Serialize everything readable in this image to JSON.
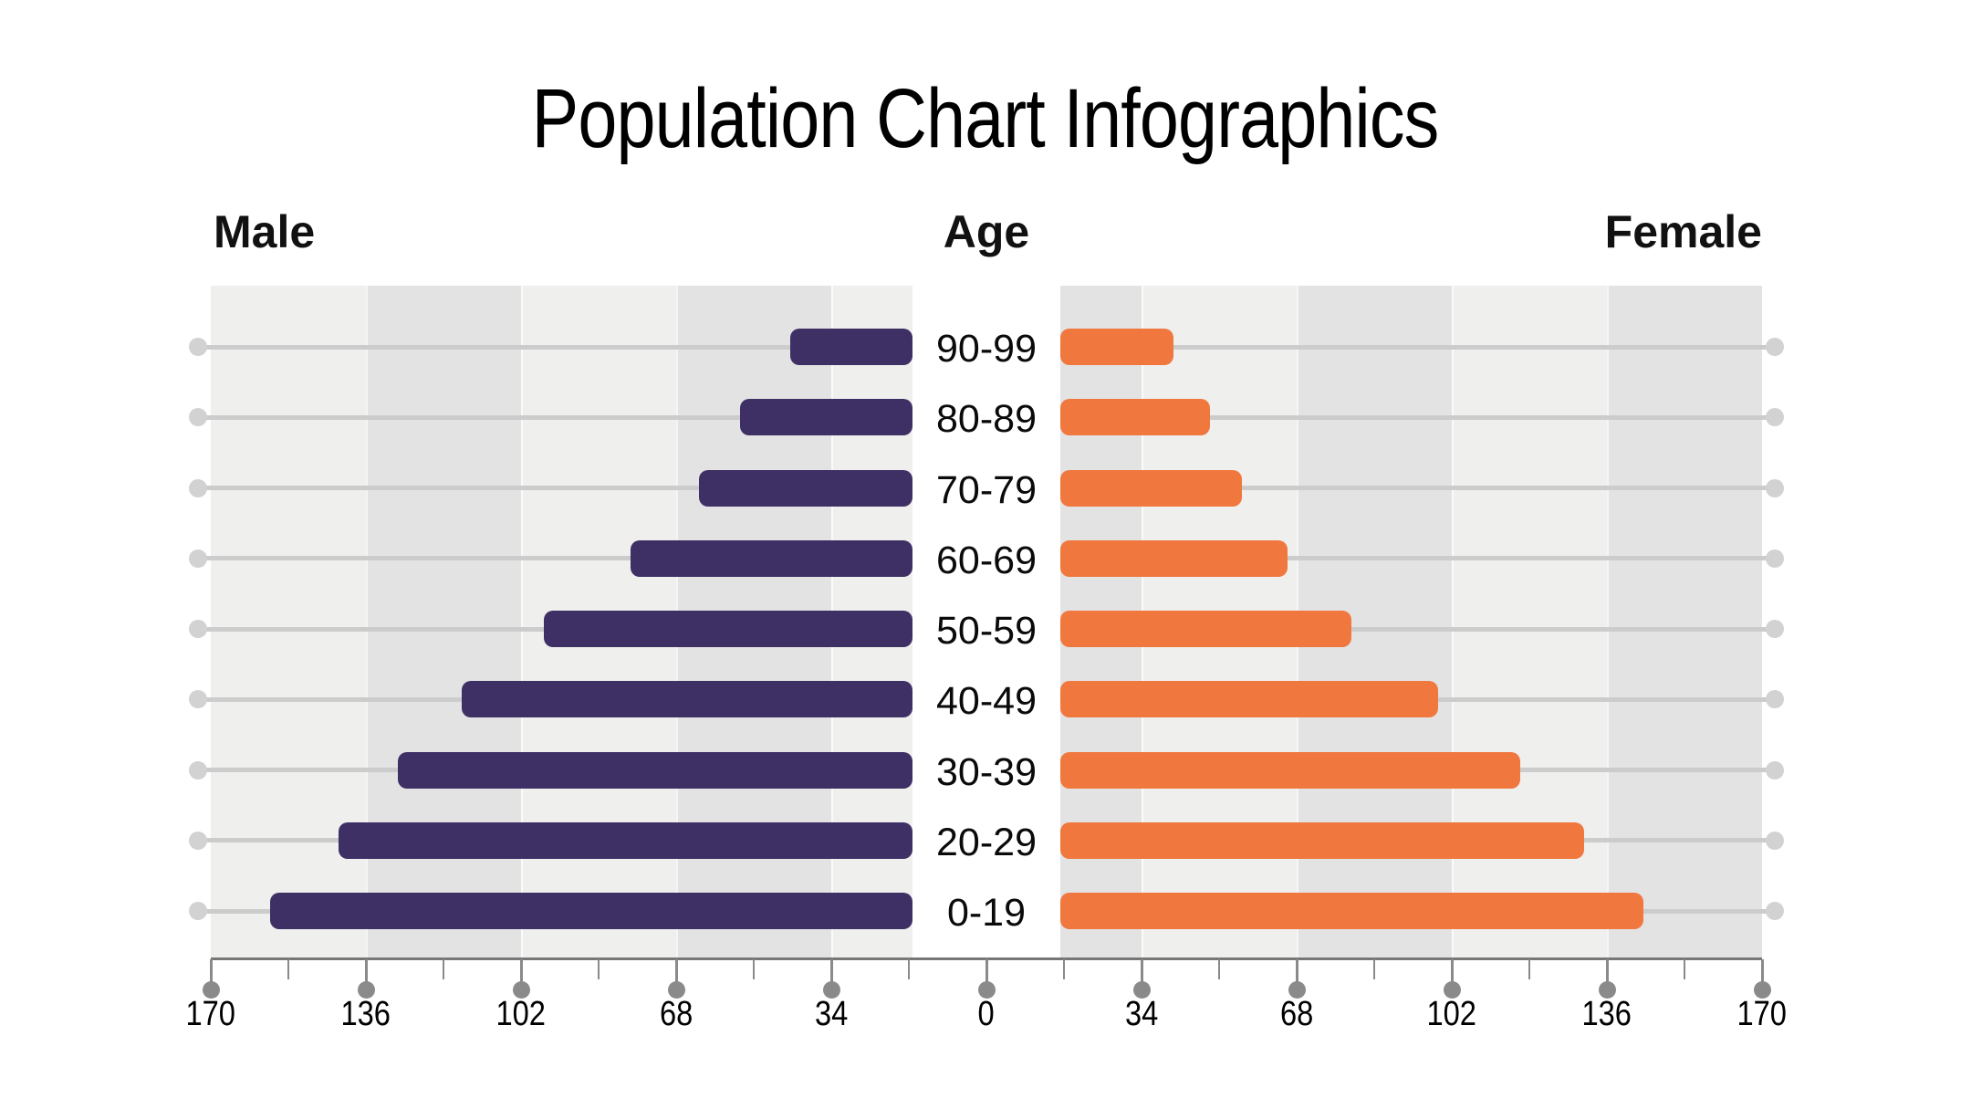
{
  "title": "Population Chart Infographics",
  "headers": {
    "male": "Male",
    "age": "Age",
    "female": "Female"
  },
  "chart_data": {
    "type": "bar",
    "subtype": "population_pyramid",
    "title": "Population Chart Infographics",
    "categories": [
      "90-99",
      "80-89",
      "70-79",
      "60-69",
      "50-59",
      "40-49",
      "30-39",
      "20-29",
      "0-19"
    ],
    "series": [
      {
        "name": "Male",
        "side": "left",
        "color": "#3E3065",
        "values": [
          43,
          54,
          63,
          78,
          97,
          115,
          129,
          142,
          157
        ]
      },
      {
        "name": "Female",
        "side": "right",
        "color": "#F0783F",
        "values": [
          41,
          49,
          56,
          66,
          80,
          99,
          117,
          131,
          144
        ]
      }
    ],
    "x_axis": {
      "major_ticks": [
        170,
        136,
        102,
        68,
        34,
        0,
        34,
        68,
        102,
        136,
        170
      ],
      "major_step": 34,
      "minor_step": 17,
      "max": 170
    },
    "grid": "striped-bands",
    "legend_position": "none",
    "colors": {
      "band_light": "#EFEFEE",
      "band_dark": "#E3E3E3",
      "row_line": "#CCCCCC",
      "row_dot": "#D2D2D2",
      "axis_line": "#777777",
      "axis_tick": "#8A8A8A",
      "axis_dot": "#8A8A8A",
      "text": "#000000",
      "background": "#FFFFFF"
    }
  }
}
